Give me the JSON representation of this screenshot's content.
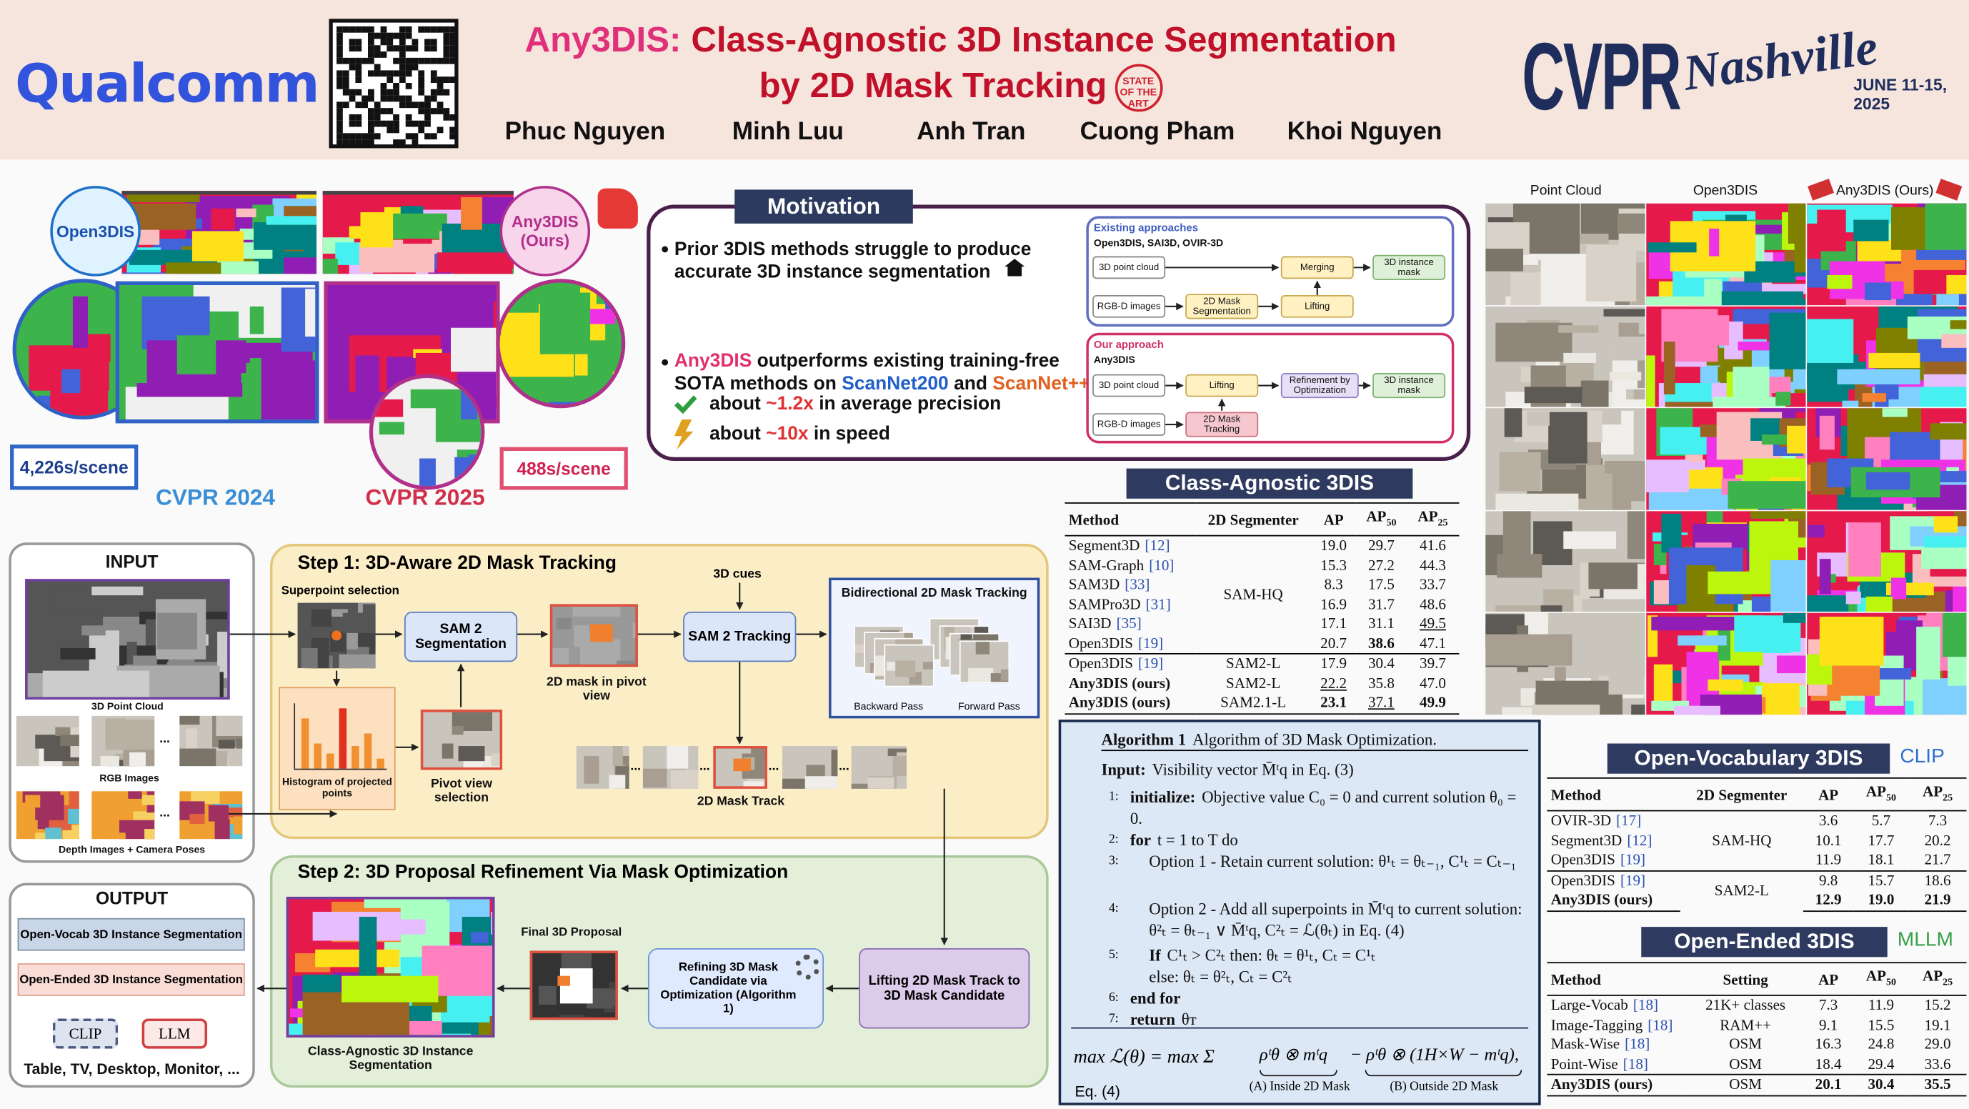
{
  "header": {
    "logo": "Qualcomm",
    "title_highlight": "Any3DIS:",
    "title_rest": "Class-Agnostic 3D Instance Segmentation",
    "title_line2": "by 2D Mask Tracking",
    "badge": "STATE OF THE ART",
    "authors": [
      "Phuc Nguyen",
      "Minh Luu",
      "Anh Tran",
      "Cuong Pham",
      "Khoi Nguyen"
    ],
    "conference": "CVPR",
    "city": "Nashville",
    "dates": "JUNE 11-15, 2025"
  },
  "teaser": {
    "baseline_label": "Open3DIS",
    "ours_label": "Any3DIS (Ours)",
    "baseline_time": "4,226s/scene",
    "ours_time": "488s/scene",
    "baseline_venue": "CVPR 2024",
    "ours_venue": "CVPR 2025"
  },
  "motivation": {
    "title": "Motivation",
    "bullet1": "Prior 3DIS methods struggle to produce accurate 3D instance segmentation",
    "bullet2": {
      "method": "Any3DIS",
      "text1": " outperforms existing training-free SOTA methods on ",
      "dataset1": "ScanNet200",
      "text2": " and ",
      "dataset2": "ScanNet++"
    },
    "gain1": {
      "prefix": "about ",
      "value": "~1.2x",
      "suffix": " in average precision"
    },
    "gain2": {
      "prefix": "about ",
      "value": "~10x",
      "suffix": " in speed"
    },
    "existing": {
      "title": "Existing approaches",
      "subtitle": "Open3DIS, SAI3D, OVIR-3D",
      "nodes": [
        "3D point cloud",
        "RGB-D images",
        "2D Mask Segmentation",
        "Merging",
        "Lifting",
        "3D instance mask"
      ]
    },
    "ours": {
      "title": "Our approach",
      "subtitle": "Any3DIS",
      "nodes": [
        "3D point cloud",
        "RGB-D images",
        "Lifting",
        "2D Mask Tracking",
        "Refinement by Optimization",
        "3D instance mask"
      ]
    }
  },
  "qualitative": {
    "columns": [
      "Point Cloud",
      "Open3DIS",
      "Any3DIS (Ours)"
    ]
  },
  "class_agnostic": {
    "title": "Class-Agnostic 3DIS",
    "header": [
      "Method",
      "2D Segmenter",
      "AP",
      {
        "text": "AP",
        "sub": "50"
      },
      {
        "text": "AP",
        "sub": "25"
      }
    ],
    "groups": [
      {
        "segmenter": "SAM-HQ",
        "rows": [
          {
            "method": "Segment3D",
            "ref": "[12]",
            "ap": "19.0",
            "ap50": "29.7",
            "ap25": "41.6"
          },
          {
            "method": "SAM-Graph",
            "ref": "[10]",
            "ap": "15.3",
            "ap50": "27.2",
            "ap25": "44.3"
          },
          {
            "method": "SAM3D",
            "ref": "[33]",
            "ap": "8.3",
            "ap50": "17.5",
            "ap25": "33.7"
          },
          {
            "method": "SAMPro3D",
            "ref": "[31]",
            "ap": "16.9",
            "ap50": "31.7",
            "ap25": "48.6"
          },
          {
            "method": "SAI3D",
            "ref": "[35]",
            "ap": "17.1",
            "ap50": "31.1",
            "ap25": "49.5"
          },
          {
            "method": "Open3DIS",
            "ref": "[19]",
            "ap": "20.7",
            "ap50": "38.6",
            "ap25": "47.1"
          }
        ]
      },
      {
        "rows": [
          {
            "method": "Open3DIS",
            "ref": "[19]",
            "segmenter": "SAM2-L",
            "ap": "17.9",
            "ap50": "30.4",
            "ap25": "39.7"
          },
          {
            "method": "Any3DIS (ours)",
            "segmenter": "SAM2-L",
            "ap": "22.2",
            "ap50": "35.8",
            "ap25": "47.0"
          },
          {
            "method": "Any3DIS (ours)",
            "segmenter": "SAM2.1-L",
            "ap": "23.1",
            "ap50": "37.1",
            "ap25": "49.9"
          }
        ]
      }
    ]
  },
  "algorithm": {
    "label": "Algorithm 1",
    "caption": "Algorithm of 3D Mask Optimization.",
    "input_label": "Input:",
    "input": "Visibility vector M̄ᵗq in Eq. (3)",
    "steps": [
      {
        "num": "1:",
        "kw": "initialize:",
        "text": "Objective value C₀ = 0 and current solution θ₀ = 0."
      },
      {
        "num": "2:",
        "kw": "for",
        "text": "t = 1 to T do"
      },
      {
        "num": "3:",
        "text": "Option 1 - Retain current solution: θ¹ₜ = θₜ₋₁,   C¹ₜ = Cₜ₋₁"
      },
      {
        "num": "4:",
        "text": "Option 2 - Add all superpoints in M̄ᵗq to current solution: θ²ₜ = θₜ₋₁ ∨ M̄ᵗq,   C²ₜ = ℒ(θₜ) in Eq. (4)"
      },
      {
        "num": "5:",
        "kw": "If",
        "text": "C¹ₜ > C²ₜ then: θₜ = θ¹ₜ, Cₜ = C¹ₜ",
        "text2": "else: θₜ = θ²ₜ, Cₜ = C²ₜ"
      },
      {
        "num": "6:",
        "kw": "end for"
      },
      {
        "num": "7:",
        "kw": "return",
        "text": "θᴛ"
      }
    ],
    "equation": {
      "lhs": "max ℒ(θ) = max Σ",
      "term_a": "ρᵗθ ⊗ mᵗq",
      "term_b": "− ρᵗθ ⊗ (1H×W − mᵗq),",
      "label_a": "(A) Inside 2D Mask",
      "label_b": "(B) Outside 2D Mask",
      "eq": "Eq. (4)"
    }
  },
  "open_vocabulary": {
    "title": "Open-Vocabulary 3DIS",
    "tag": "CLIP",
    "header": [
      "Method",
      "2D Segmenter",
      "AP",
      {
        "text": "AP",
        "sub": "50"
      },
      {
        "text": "AP",
        "sub": "25"
      }
    ],
    "groups": [
      {
        "segmenter": "SAM-HQ",
        "rows": [
          {
            "method": "OVIR-3D",
            "ref": "[17]",
            "ap": "3.6",
            "ap50": "5.7",
            "ap25": "7.3"
          },
          {
            "method": "Segment3D",
            "ref": "[12]",
            "ap": "10.1",
            "ap50": "17.7",
            "ap25": "20.2"
          },
          {
            "method": "Open3DIS",
            "ref": "[19]",
            "ap": "11.9",
            "ap50": "18.1",
            "ap25": "21.7"
          }
        ]
      },
      {
        "segmenter": "SAM2-L",
        "rows": [
          {
            "method": "Open3DIS",
            "ref": "[19]",
            "ap": "9.8",
            "ap50": "15.7",
            "ap25": "18.6"
          },
          {
            "method": "Any3DIS (ours)",
            "ap": "12.9",
            "ap50": "19.0",
            "ap25": "21.9"
          }
        ]
      }
    ]
  },
  "open_ended": {
    "title": "Open-Ended 3DIS",
    "tag": "MLLM",
    "header": [
      "Method",
      "Setting",
      "AP",
      {
        "text": "AP",
        "sub": "50"
      },
      {
        "text": "AP",
        "sub": "25"
      }
    ],
    "groups": [
      {
        "rows": [
          {
            "method": "Large-Vocab",
            "ref": "[18]",
            "setting": "21K+ classes",
            "ap": "7.3",
            "ap50": "11.9",
            "ap25": "15.2"
          },
          {
            "method": "Image-Tagging",
            "ref": "[18]",
            "setting": "RAM++",
            "ap": "9.1",
            "ap50": "15.5",
            "ap25": "19.1"
          },
          {
            "method": "Mask-Wise",
            "ref": "[18]",
            "setting": "OSM",
            "ap": "16.3",
            "ap50": "24.8",
            "ap25": "29.0"
          },
          {
            "method": "Point-Wise",
            "ref": "[18]",
            "setting": "OSM",
            "ap": "18.4",
            "ap50": "29.4",
            "ap25": "33.6"
          }
        ]
      },
      {
        "rows": [
          {
            "method": "Any3DIS (ours)",
            "setting": "OSM",
            "ap": "20.1",
            "ap50": "30.4",
            "ap25": "35.5"
          }
        ]
      }
    ]
  },
  "pipeline": {
    "input": {
      "title": "INPUT",
      "point_cloud": "3D Point Cloud",
      "rgb": "RGB Images",
      "depth": "Depth Images + Camera Poses",
      "ellipsis": "..."
    },
    "step1": {
      "title": "Step 1: 3D-Aware 2D Mask Tracking",
      "superpoint": "Superpoint selection",
      "histogram": "Histogram of projected points",
      "pivot": "Pivot view selection",
      "sam2_seg": "SAM 2 Segmentation",
      "mask_pivot": "2D mask in pivot view",
      "cues": "3D cues",
      "sam2_track": "SAM 2 Tracking",
      "bidirectional": "Bidirectional 2D Mask Tracking",
      "backward": "Backward Pass",
      "forward": "Forward Pass",
      "track": "2D Mask Track"
    },
    "step2": {
      "title": "Step 2: 3D Proposal Refinement Via Mask Optimization",
      "lifting": "Lifting 2D Mask Track to 3D Mask Candidate",
      "refining": "Refining 3D Mask Candidate via Optimization (Algorithm 1)",
      "final": "Final 3D Proposal",
      "result": "Class-Agnostic 3D Instance Segmentation"
    },
    "output": {
      "title": "OUTPUT",
      "open_vocab": "Open-Vocab 3D Instance Segmentation",
      "open_ended": "Open-Ended 3D Instance Segmentation",
      "clip": "CLIP",
      "llm": "LLM",
      "examples": "Table, TV, Desktop, Monitor, ..."
    }
  }
}
